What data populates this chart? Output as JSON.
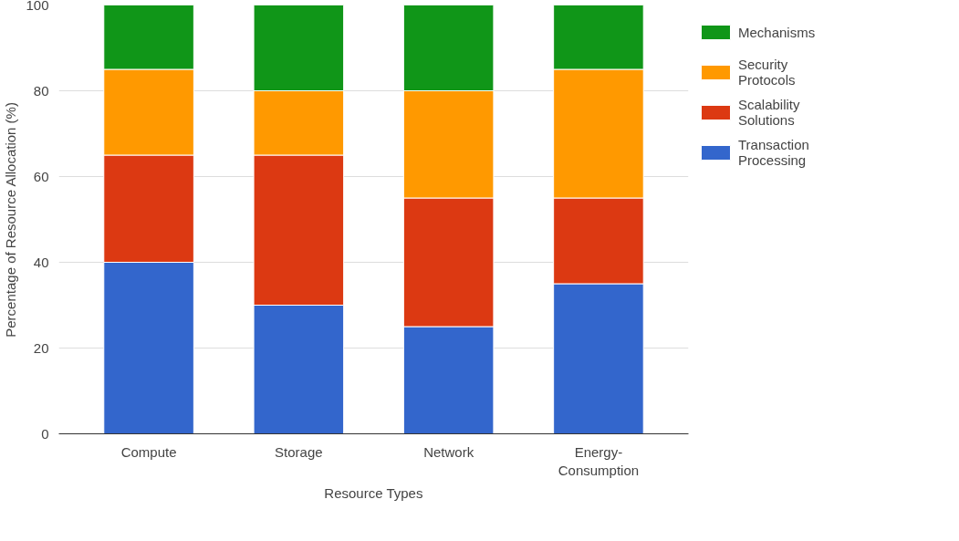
{
  "chart_data": {
    "type": "bar",
    "stacked": true,
    "xlabel": "Resource Types",
    "ylabel": "Percentage of Resource Allocation (%)",
    "categories": [
      "Compute",
      "Storage",
      "Network",
      "Energy-Consumption"
    ],
    "series": [
      {
        "name": "Transaction Processing",
        "color": "#3366cc",
        "values": [
          40,
          30,
          25,
          35
        ]
      },
      {
        "name": "Scalability Solutions",
        "color": "#dc3912",
        "values": [
          25,
          35,
          30,
          20
        ]
      },
      {
        "name": "Security Protocols",
        "color": "#ff9900",
        "values": [
          20,
          15,
          25,
          30
        ]
      },
      {
        "name": "Mechanisms",
        "color": "#109618",
        "values": [
          15,
          20,
          20,
          15
        ]
      }
    ],
    "ylim": [
      0,
      100
    ],
    "yticks": [
      0,
      20,
      40,
      60,
      80,
      100
    ],
    "grid": "y",
    "legend": "top right"
  }
}
